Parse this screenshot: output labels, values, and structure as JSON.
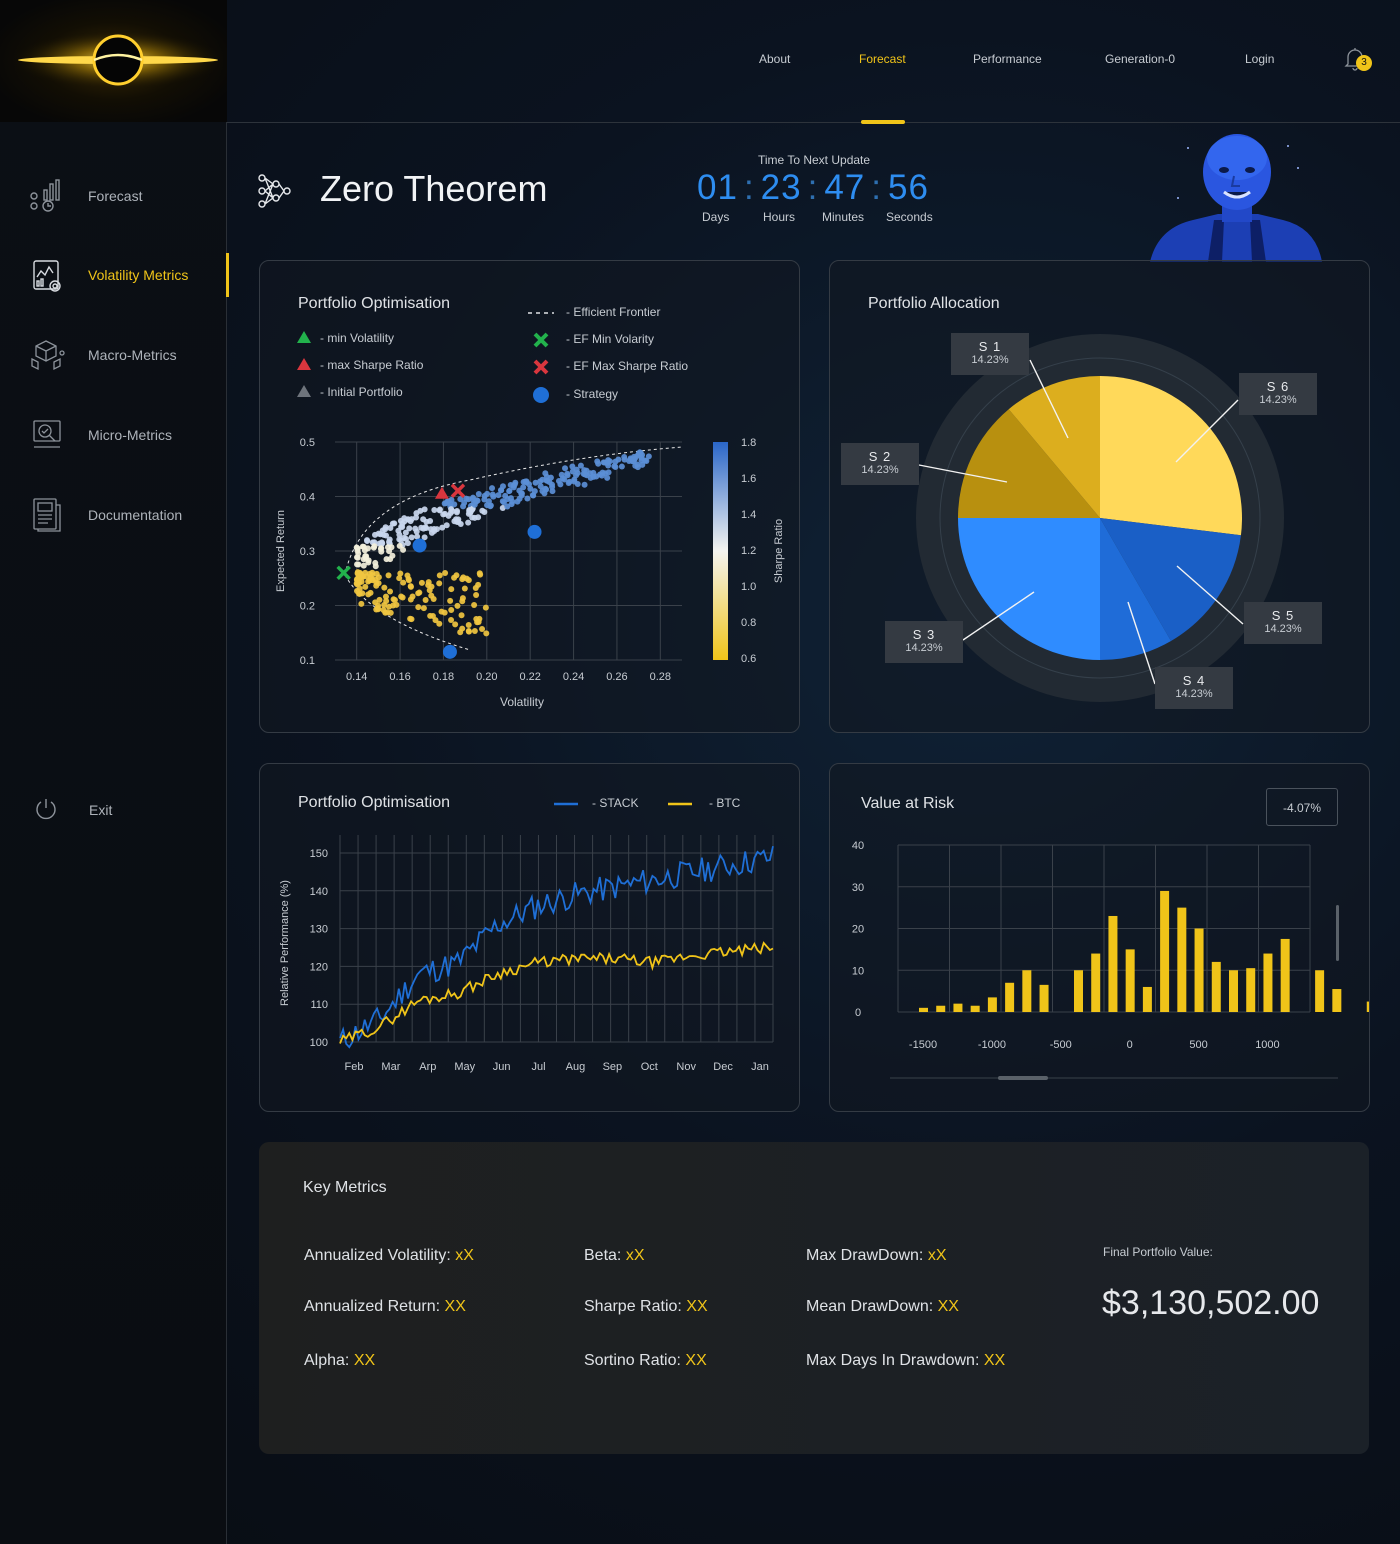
{
  "sidebar": {
    "items": [
      {
        "label": "Forecast",
        "icon": "forecast-icon"
      },
      {
        "label": "Volatility Metrics",
        "icon": "volatility-icon"
      },
      {
        "label": "Macro-Metrics",
        "icon": "macro-cube-icon"
      },
      {
        "label": "Micro-Metrics",
        "icon": "micro-analytics-icon"
      },
      {
        "label": "Documentation",
        "icon": "document-icon"
      }
    ],
    "exit_label": "Exit"
  },
  "topnav": {
    "links": [
      "About",
      "Forecast",
      "Performance",
      "Generation-0",
      "Login"
    ],
    "active": "Forecast",
    "notifications": "3"
  },
  "header": {
    "title": "Zero Theorem",
    "timer_caption": "Time To Next Update",
    "timer": {
      "days": "01",
      "hours": "23",
      "minutes": "47",
      "seconds": "56"
    },
    "timer_labels": {
      "days": "Days",
      "hours": "Hours",
      "minutes": "Minutes",
      "seconds": "Seconds"
    }
  },
  "colors": {
    "accent": "#f0c419",
    "blue": "#2e8df0",
    "stack": "#1f6fd6",
    "btc": "#f0c419"
  },
  "scatter_card": {
    "title": "Portfolio Optimisation",
    "legend": {
      "min_vol": "- min Volatility",
      "max_sharpe": "- max Sharpe Ratio",
      "initial": "- Initial Portfolio",
      "frontier": "- Efficient Frontier",
      "ef_min": "- EF Min Volarity",
      "ef_max": "- EF Max Sharpe Ratio",
      "strategy": "- Strategy"
    }
  },
  "allocation_card": {
    "title": "Portfolio Allocation"
  },
  "line_card": {
    "title": "Portfolio Optimisation",
    "legend_stack": "- STACK",
    "legend_btc": "- BTC"
  },
  "var_card": {
    "title": "Value at Risk",
    "value": "-4.07%"
  },
  "key_metrics": {
    "title": "Key Metrics",
    "items": [
      {
        "label": "Annualized Volatility:",
        "value": "xX"
      },
      {
        "label": "Beta:",
        "value": "xX"
      },
      {
        "label": "Max DrawDown:",
        "value": "xX"
      },
      {
        "label": "Annualized Return:",
        "value": "XX"
      },
      {
        "label": "Sharpe Ratio:",
        "value": "XX"
      },
      {
        "label": "Mean DrawDown:",
        "value": "XX"
      },
      {
        "label": "Alpha:",
        "value": "XX"
      },
      {
        "label": "Sortino Ratio:",
        "value": "XX"
      },
      {
        "label": "Max Days In Drawdown:",
        "value": "XX"
      }
    ],
    "final_label": "Final Portfolio Value:",
    "final_value": "$3,130,502.00"
  },
  "chart_data": [
    {
      "type": "scatter",
      "xlabel": "Volatility",
      "ylabel": "Expected Return",
      "colorbar_label": "Sharpe Ratio",
      "xticks": [
        "0.14",
        "0.16",
        "0.18",
        "0.20",
        "0.22",
        "0.24",
        "0.26",
        "0.28"
      ],
      "yticks": [
        "0.1",
        "0.2",
        "0.3",
        "0.4",
        "0.5"
      ],
      "colorbar_ticks": [
        "0.6",
        "0.8",
        "1.0",
        "1.2",
        "1.4",
        "1.6",
        "1.8"
      ],
      "xlim": [
        0.13,
        0.29
      ],
      "ylim": [
        0.1,
        0.5
      ],
      "markers": {
        "min_volatility": {
          "x": 0.175,
          "y": 0.395
        },
        "max_sharpe": {
          "x": 0.183,
          "y": 0.405
        },
        "ef_min_volatility": {
          "x": 0.134,
          "y": 0.26
        },
        "ef_max_sharpe": {
          "x": 0.183,
          "y": 0.405
        },
        "strategy": [
          {
            "x": 0.169,
            "y": 0.31
          },
          {
            "x": 0.222,
            "y": 0.335
          },
          {
            "x": 0.183,
            "y": 0.115
          }
        ]
      }
    },
    {
      "type": "pie",
      "title": "Portfolio Allocation",
      "labels": [
        "S 1",
        "S 2",
        "S 3",
        "S 4",
        "S 5",
        "S 6"
      ],
      "values": [
        14.23,
        14.23,
        14.23,
        14.23,
        14.23,
        14.23
      ],
      "value_labels": [
        "14.23%",
        "14.23%",
        "14.23%",
        "14.23%",
        "14.23%",
        "14.23%"
      ]
    },
    {
      "type": "line",
      "ylabel": "Relative Performance (%)",
      "categories": [
        "Feb",
        "Mar",
        "Arp",
        "May",
        "Jun",
        "Jul",
        "Aug",
        "Sep",
        "Oct",
        "Nov",
        "Dec",
        "Jan"
      ],
      "yticks": [
        "100",
        "110",
        "120",
        "130",
        "140",
        "150"
      ],
      "ylim": [
        100,
        153
      ],
      "series": [
        {
          "name": "STACK",
          "values": [
            100,
            106,
            118,
            121,
            131,
            136,
            139,
            141,
            143,
            145,
            147,
            149
          ]
        },
        {
          "name": "BTC",
          "values": [
            100,
            104,
            111,
            113,
            118,
            121,
            122,
            122,
            121,
            123,
            124,
            125
          ]
        }
      ]
    },
    {
      "type": "bar",
      "title": "Value at Risk",
      "xticks": [
        "-1500",
        "-1000",
        "-500",
        "0",
        "500",
        "1000"
      ],
      "yticks": [
        "0",
        "10",
        "20",
        "30",
        "40"
      ],
      "ylim": [
        0,
        40
      ],
      "x": [
        -1500,
        -1375,
        -1250,
        -1125,
        -1000,
        -875,
        -750,
        -625,
        -375,
        -250,
        -125,
        0,
        125,
        250,
        375,
        500,
        625,
        750,
        875,
        1000,
        1125,
        1375,
        1500,
        1750
      ],
      "values": [
        1,
        1.5,
        2,
        1.5,
        3.5,
        7,
        10,
        6.5,
        10,
        14,
        23,
        15,
        6,
        29,
        25,
        20,
        12,
        10,
        10.5,
        14,
        17.5,
        10,
        5.5,
        2.5
      ]
    }
  ]
}
